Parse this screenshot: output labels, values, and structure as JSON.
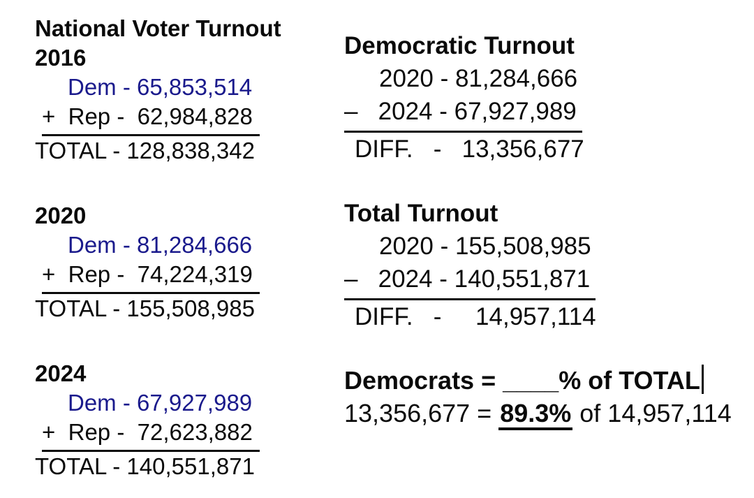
{
  "document": {
    "background": "#ffffff",
    "text_color": "#0a0a0a",
    "dem_blue": "#1a1a8c"
  },
  "national": {
    "title": "National Voter Turnout",
    "sections": [
      {
        "year": "2016",
        "dem": "Dem - 65,853,514",
        "rep": "+  Rep -  62,984,828",
        "total": "TOTAL - 128,838,342"
      },
      {
        "year": "2020",
        "dem": "Dem - 81,284,666",
        "rep": "+  Rep -  74,224,319",
        "total": "TOTAL - 155,508,985"
      },
      {
        "year": "2024",
        "dem": "Dem - 67,927,989",
        "rep": "+  Rep -  72,623,882",
        "total": "TOTAL - 140,551,871"
      }
    ]
  },
  "democratic_turnout": {
    "title": "Democratic Turnout",
    "year_2020": "2020 - 81,284,666",
    "year_2024": "–   2024 - 67,927,989",
    "diff": "DIFF.   -   13,356,677"
  },
  "total_turnout": {
    "title": "Total Turnout",
    "year_2020": "2020 - 155,508,985",
    "year_2024": "–   2024 - 140,551,871",
    "diff": "DIFF.   -     14,957,114"
  },
  "percentage": {
    "question_prefix": "Democrats = ",
    "question_blank": "____",
    "question_suffix": "% of TOTAL",
    "answer_prefix": "13,356,677 = ",
    "answer_value": "89.3%",
    "answer_suffix": " of 14,957,114"
  }
}
